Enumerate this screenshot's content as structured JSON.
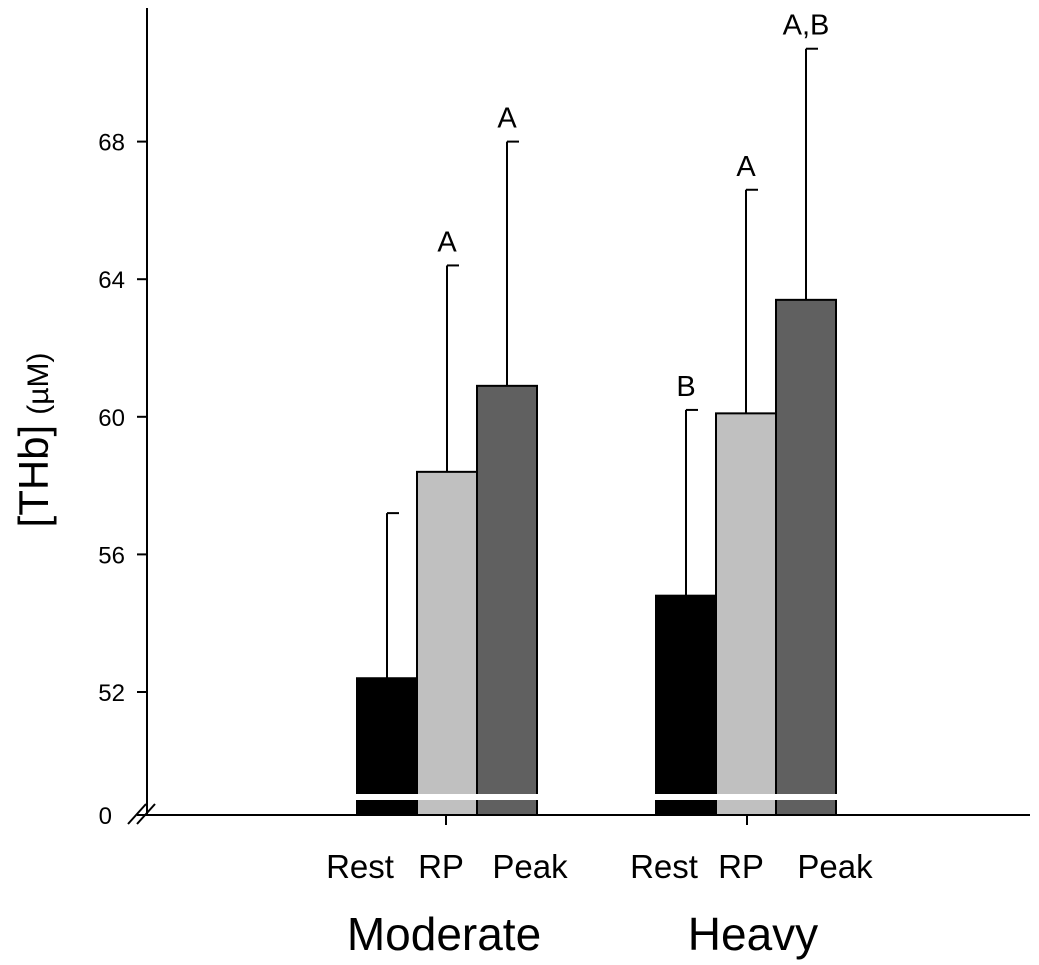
{
  "chart_data": {
    "type": "bar",
    "ylabel": "[THb] (µM)",
    "ylabel_main": "[THb]",
    "ylabel_unit": "(µM)",
    "y_axis_break": true,
    "ylim": [
      48,
      72
    ],
    "yticks": [
      52,
      56,
      60,
      64,
      68
    ],
    "ytick_labels": [
      "52",
      "56",
      "60",
      "64",
      "68"
    ],
    "baseline_label": "0",
    "grid": false,
    "legend": "none",
    "groups": [
      {
        "name": "Moderate",
        "bars": [
          {
            "label": "Rest",
            "value": 52.4,
            "error": 4.8,
            "sig": "",
            "color": "#000000"
          },
          {
            "label": "RP",
            "value": 58.4,
            "error": 6.0,
            "sig": "A",
            "color": "#c0c0c0"
          },
          {
            "label": "Peak",
            "value": 60.9,
            "error": 7.1,
            "sig": "A",
            "color": "#606060"
          }
        ]
      },
      {
        "name": "Heavy",
        "bars": [
          {
            "label": "Rest",
            "value": 54.8,
            "error": 5.4,
            "sig": "B",
            "color": "#000000"
          },
          {
            "label": "RP",
            "value": 60.1,
            "error": 6.5,
            "sig": "A",
            "color": "#c0c0c0"
          },
          {
            "label": "Peak",
            "value": 63.4,
            "error": 7.3,
            "sig": "A,B",
            "color": "#606060"
          }
        ]
      }
    ]
  }
}
